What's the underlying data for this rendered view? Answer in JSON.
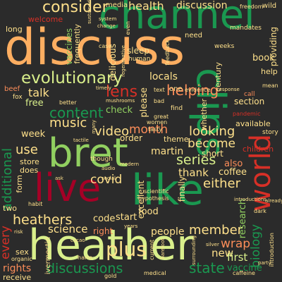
{
  "palette": {
    "background": "#2b2b2b",
    "dark_green": "#1a9850",
    "light_green": "#91cf60",
    "pale_green": "#d9ef8b",
    "pale_yellow": "#fee08b",
    "orange": "#fc8d59",
    "red": "#d73027",
    "crimson": "#a50026"
  },
  "words": {
    "discuss": "discuss",
    "channel": "channel",
    "heather": "heather",
    "bret": "bret",
    "like": "like",
    "live": "live",
    "clips": "clips",
    "world": "world",
    "evolutionary": "evolutionary",
    "consider": "consider",
    "health": "health",
    "discussion": "discussion",
    "content": "content",
    "lens": "lens",
    "helping": "helping",
    "month": "month",
    "music": "music",
    "video": "video",
    "become": "become",
    "looking": "looking",
    "series": "series",
    "either": "either",
    "covid": "covid",
    "heathers": "heathers",
    "member": "member",
    "wrap": "wrap",
    "science": "science",
    "biology": "biology",
    "discussions": "discussions",
    "state": "state",
    "new": "new",
    "additional": "additional",
    "use": "use",
    "every": "every",
    "talk": "talk",
    "free": "free",
    "thank": "thank",
    "coffee": "coffee",
    "also": "also",
    "research": "research",
    "people": "people",
    "plus": "plus",
    "first": "first",
    "vaccine": "vaccine",
    "rights": "rights",
    "receive": "receive",
    "long": "long",
    "welcome": "welcome",
    "vaccines": "vaccines",
    "frequently": "frequently",
    "media": "media",
    "delicious": "delicious",
    "sleep": "sleep",
    "locals": "locals",
    "please": "please",
    "providing": "providing",
    "book": "book",
    "section": "section",
    "available": "available",
    "week": "week",
    "store": "store",
    "does": "does",
    "form": "form",
    "martin": "martin",
    "short": "short",
    "order": "order",
    "theme": "theme",
    "excellent": "excellent",
    "finally": "finally",
    "food": "food",
    "code": "code",
    "start": "start",
    "two": "two",
    "beef": "beef",
    "fox": "fox",
    "whether": "whether",
    "check": "check",
    "century": "century",
    "need": "need",
    "children": "children",
    "wild": "wild",
    "mandates": "mandates",
    "freedom": "freedom",
    "help": "help",
    "story": "story",
    "call": "call",
    "mean": "mean",
    "pandemic": "pandemic",
    "hypothesis": "hypothesis",
    "evidence": "evidence",
    "right": "right",
    "organic": "organic",
    "sex": "sex",
    "ivermectin": "ivermectin",
    "text": "text",
    "one": "one",
    "human": "human",
    "system": "system",
    "weeks": "weeks",
    "feedback": "feedback",
    "bad": "bad",
    "find": "find",
    "introductions": "introductions",
    "introduction": "introduction",
    "caffeine": "caffeine",
    "silver": "silver",
    "medical": "medical",
    "harm": "harm",
    "tasty": "tasty",
    "great": "great",
    "women": "women",
    "scientific": "scientific",
    "audio": "audio",
    "social": "social",
    "though": "though",
    "modern": "modern",
    "gold": "gold",
    "even": "even",
    "change": "change",
    "case": "case",
    "better": "better",
    "sustained": "sustained",
    "regenerative": "regenerative",
    "habit": "habit",
    "years": "years",
    "current": "current",
    "barefoot": "barefoot",
    "surrounding": "surrounding",
    "response": "response",
    "dark": "dark",
    "already": "already",
    "mushrooms": "mushrooms",
    "timely": "timely",
    "party": "party",
    "risk": "risk",
    "cacao": "cacao",
    "ask": "ask",
    "many": "many",
    "tactile": "tactile"
  }
}
